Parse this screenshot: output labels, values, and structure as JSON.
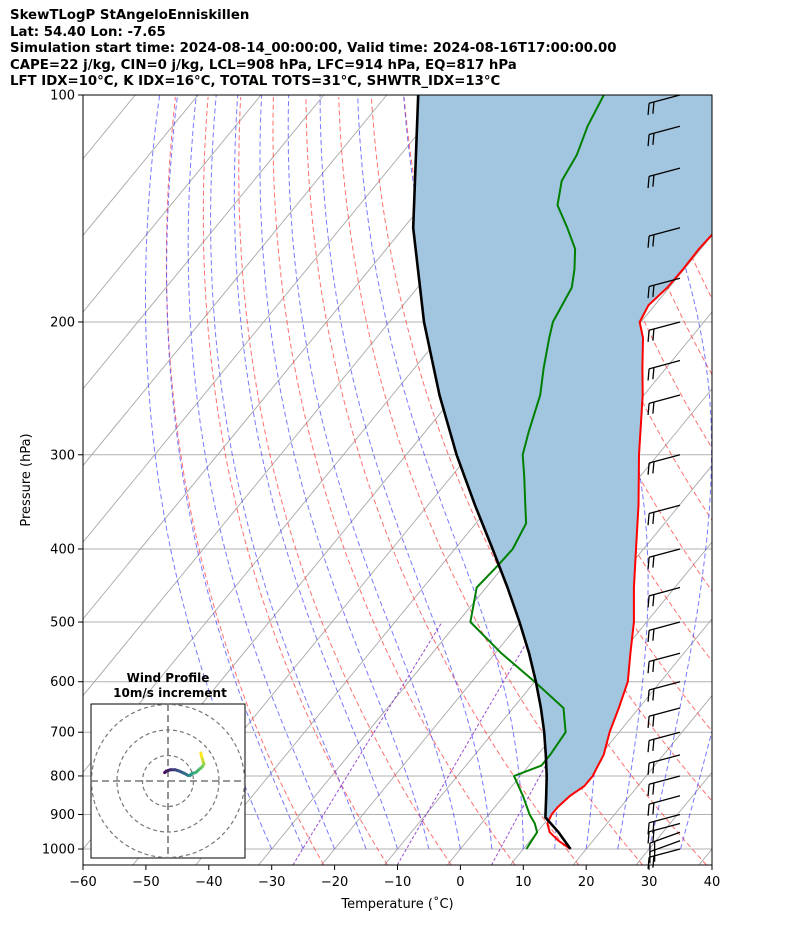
{
  "header": {
    "line1": "SkewTLogP StAngeloEnniskillen",
    "line2": "Lat: 54.40   Lon: -7.65",
    "line3": "Simulation start time: 2024-08-14_00:00:00, Valid time: 2024-08-16T17:00:00.00",
    "line4": "CAPE=22 j/kg, CIN=0 j/kg, LCL=908 hPa, LFC=914 hPa, EQ=817 hPa",
    "line5": "LFT IDX=10°C, K IDX=16°C, TOTAL TOTS=31°C, SHWTR_IDX=13°C"
  },
  "chart_data": {
    "type": "line",
    "chart_kind": "skew-T log-P sounding",
    "xlabel": "Temperature (˚C)",
    "ylabel": "Pressure (hPa)",
    "xlim": [
      -60,
      40
    ],
    "ylim": [
      1050,
      100
    ],
    "y_scale": "log",
    "x_ticks": [
      -60,
      -50,
      -40,
      -30,
      -20,
      -10,
      0,
      10,
      20,
      30,
      40
    ],
    "y_ticks": [
      1000,
      900,
      800,
      700,
      600,
      500,
      400,
      300,
      200,
      100
    ],
    "grid": true,
    "colors": {
      "temperature": "#ff0000",
      "dewpoint": "#008000",
      "parcel": "#000000",
      "cape_fill": "#a3c6e0",
      "dry_adiabats": "#ff4040",
      "moist_adiabats": "#4040ff",
      "mixing_ratio": "#8020c0",
      "isotherms": "#999999"
    },
    "series": [
      {
        "name": "temperature",
        "points": [
          [
            1000,
            17.5
          ],
          [
            975,
            14.5
          ],
          [
            950,
            12.0
          ],
          [
            925,
            10.5
          ],
          [
            900,
            10.0
          ],
          [
            880,
            10.0
          ],
          [
            850,
            10.5
          ],
          [
            825,
            11.5
          ],
          [
            800,
            11.5
          ],
          [
            775,
            11.0
          ],
          [
            750,
            10.5
          ],
          [
            700,
            8.5
          ],
          [
            650,
            6.8
          ],
          [
            600,
            4.8
          ],
          [
            550,
            1.5
          ],
          [
            500,
            -2.0
          ],
          [
            450,
            -6.5
          ],
          [
            400,
            -11.2
          ],
          [
            350,
            -16.5
          ],
          [
            300,
            -23.0
          ],
          [
            250,
            -30.2
          ],
          [
            230,
            -33.8
          ],
          [
            210,
            -37.6
          ],
          [
            200,
            -40.2
          ],
          [
            190,
            -41.0
          ],
          [
            180,
            -40.3
          ],
          [
            170,
            -40.2
          ],
          [
            160,
            -40.3
          ],
          [
            150,
            -40.0
          ],
          [
            140,
            -40.7
          ],
          [
            130,
            -42.8
          ],
          [
            120,
            -44.8
          ],
          [
            110,
            -47.1
          ],
          [
            100,
            -49.5
          ]
        ]
      },
      {
        "name": "dewpoint",
        "points": [
          [
            1000,
            10.5
          ],
          [
            950,
            10.0
          ],
          [
            925,
            8.5
          ],
          [
            900,
            6.5
          ],
          [
            850,
            3.0
          ],
          [
            800,
            -1.0
          ],
          [
            775,
            2.0
          ],
          [
            750,
            2.0
          ],
          [
            700,
            1.5
          ],
          [
            650,
            -2.0
          ],
          [
            600,
            -10.0
          ],
          [
            550,
            -19.0
          ],
          [
            500,
            -28.0
          ],
          [
            450,
            -31.5
          ],
          [
            420,
            -31.0
          ],
          [
            400,
            -30.8
          ],
          [
            370,
            -32.0
          ],
          [
            350,
            -34.5
          ],
          [
            320,
            -38.5
          ],
          [
            300,
            -41.5
          ],
          [
            280,
            -43.5
          ],
          [
            250,
            -46.5
          ],
          [
            230,
            -49.5
          ],
          [
            210,
            -52.5
          ],
          [
            200,
            -54.0
          ],
          [
            180,
            -55.5
          ],
          [
            170,
            -57.5
          ],
          [
            160,
            -60.0
          ],
          [
            150,
            -64.0
          ],
          [
            140,
            -68.5
          ],
          [
            130,
            -71.0
          ],
          [
            120,
            -72.0
          ],
          [
            110,
            -74.0
          ],
          [
            100,
            -75.5
          ]
        ]
      },
      {
        "name": "parcel",
        "points": [
          [
            1000,
            17.5
          ],
          [
            950,
            13.4
          ],
          [
            908,
            9.4
          ],
          [
            850,
            6.7
          ],
          [
            800,
            4.2
          ],
          [
            750,
            1.3
          ],
          [
            700,
            -1.9
          ],
          [
            650,
            -5.6
          ],
          [
            600,
            -9.8
          ],
          [
            550,
            -14.6
          ],
          [
            500,
            -20.2
          ],
          [
            450,
            -26.6
          ],
          [
            400,
            -34.0
          ],
          [
            350,
            -42.5
          ],
          [
            300,
            -52.0
          ],
          [
            250,
            -62.5
          ],
          [
            200,
            -74.5
          ],
          [
            150,
            -88.5
          ],
          [
            100,
            -105.0
          ]
        ]
      }
    ],
    "wind_barbs": {
      "pressures": [
        1000,
        975,
        950,
        925,
        900,
        850,
        800,
        750,
        700,
        650,
        600,
        550,
        500,
        450,
        400,
        350,
        300,
        250,
        225,
        200,
        175,
        150,
        125,
        110,
        100
      ],
      "speed_kt": [
        15,
        15,
        15,
        15,
        15,
        15,
        15,
        15,
        15,
        15,
        15,
        15,
        15,
        15,
        15,
        15,
        15,
        15,
        15,
        15,
        15,
        15,
        15,
        15,
        15
      ],
      "direction_deg": [
        255,
        250,
        250,
        255,
        255,
        255,
        255,
        255,
        255,
        255,
        255,
        255,
        255,
        255,
        255,
        255,
        255,
        255,
        255,
        255,
        255,
        255,
        255,
        255,
        255
      ]
    },
    "hodograph": {
      "title": "Wind Profile",
      "subtitle": "10m/s increment",
      "ring_spacing_ms": 10,
      "rings": 3,
      "points_ms": [
        [
          -7.2,
          3.3
        ],
        [
          -6.5,
          3.9
        ],
        [
          -5,
          4.4
        ],
        [
          -3,
          4.4
        ],
        [
          -1.5,
          3.9
        ],
        [
          0.5,
          3.0
        ],
        [
          2.0,
          2.2
        ],
        [
          2.8,
          2.2
        ],
        [
          3.6,
          3.0
        ],
        [
          5.0,
          3.3
        ],
        [
          6.5,
          4.7
        ],
        [
          7.5,
          5.5
        ],
        [
          8.2,
          6.6
        ],
        [
          7.8,
          8.0
        ],
        [
          7.3,
          9.5
        ],
        [
          7.0,
          11.0
        ]
      ]
    }
  }
}
